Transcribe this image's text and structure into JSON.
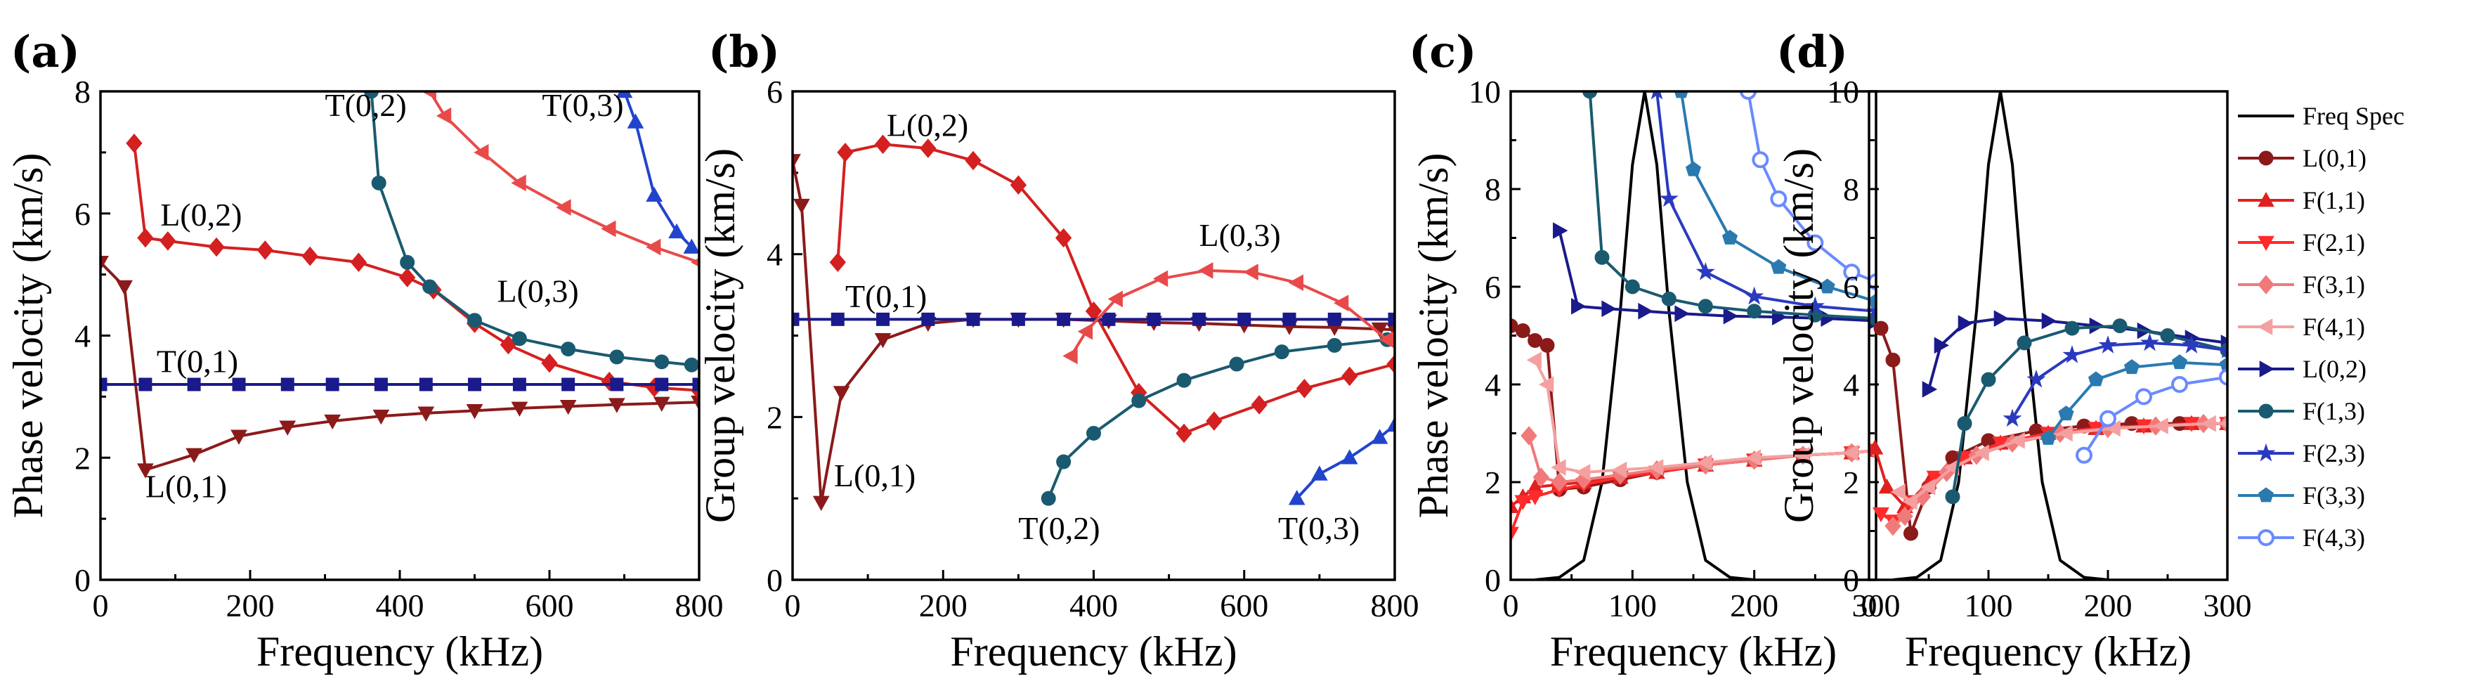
{
  "chart_data": [
    {
      "panel": "(a)",
      "type": "line",
      "xlabel": "Frequency (kHz)",
      "ylabel": "Phase velocity (km/s)",
      "xlim": [
        0,
        800
      ],
      "ylim": [
        0,
        8
      ],
      "xticks": [
        "0",
        "200",
        "400",
        "600",
        "800"
      ],
      "yticks": [
        "0",
        "2",
        "4",
        "6",
        "8"
      ],
      "annotations": [
        "T(0,2)",
        "T(0,3)",
        "L(0,2)",
        "L(0,3)",
        "T(0,1)",
        "L(0,1)"
      ],
      "series": [
        {
          "name": "L(0,1)",
          "color": "#8b1a1a",
          "marker": "tri-down",
          "x": [
            0,
            32,
            60,
            125,
            185,
            250,
            310,
            375,
            435,
            500,
            560,
            625,
            690,
            750,
            800
          ],
          "y": [
            5.2,
            4.8,
            1.8,
            2.05,
            2.35,
            2.5,
            2.6,
            2.68,
            2.73,
            2.77,
            2.81,
            2.84,
            2.87,
            2.89,
            2.91
          ]
        },
        {
          "name": "L(0,2)",
          "color": "#d42020",
          "marker": "diamond",
          "x": [
            45,
            60,
            90,
            155,
            220,
            280,
            345,
            410,
            445,
            500,
            545,
            600,
            680,
            740,
            800
          ],
          "y": [
            7.15,
            5.6,
            5.55,
            5.45,
            5.4,
            5.3,
            5.2,
            4.95,
            4.75,
            4.2,
            3.85,
            3.55,
            3.25,
            3.15,
            3.1
          ]
        },
        {
          "name": "T(0,1)",
          "color": "#1a1a8c",
          "marker": "square",
          "x": [
            0,
            60,
            125,
            185,
            250,
            310,
            375,
            435,
            500,
            560,
            625,
            690,
            750,
            800
          ],
          "y": [
            3.2,
            3.2,
            3.2,
            3.2,
            3.2,
            3.2,
            3.2,
            3.2,
            3.2,
            3.2,
            3.2,
            3.2,
            3.2,
            3.2
          ]
        },
        {
          "name": "T(0,2)",
          "color": "#1a5a70",
          "marker": "circle",
          "x": [
            362,
            372,
            410,
            440,
            500,
            560,
            625,
            690,
            750,
            790
          ],
          "y": [
            8.0,
            6.5,
            5.2,
            4.8,
            4.25,
            3.95,
            3.78,
            3.65,
            3.57,
            3.52
          ]
        },
        {
          "name": "L(0,3)",
          "color": "#e84a4a",
          "marker": "tri-left",
          "x": [
            440,
            460,
            510,
            560,
            620,
            680,
            740,
            800
          ],
          "y": [
            8.0,
            7.6,
            7.0,
            6.5,
            6.1,
            5.75,
            5.45,
            5.2
          ]
        },
        {
          "name": "T(0,3)",
          "color": "#2244cc",
          "marker": "tri-up",
          "x": [
            700,
            715,
            740,
            770,
            790
          ],
          "y": [
            8.0,
            7.5,
            6.3,
            5.7,
            5.45
          ]
        }
      ]
    },
    {
      "panel": "(b)",
      "type": "line",
      "xlabel": "Frequency (kHz)",
      "ylabel": "Group velocity (km/s)",
      "xlim": [
        0,
        800
      ],
      "ylim": [
        0,
        6
      ],
      "xticks": [
        "0",
        "200",
        "400",
        "600",
        "800"
      ],
      "yticks": [
        "0",
        "2",
        "4",
        "6"
      ],
      "annotations": [
        "L(0,2)",
        "L(0,3)",
        "T(0,1)",
        "L(0,1)",
        "T(0,2)",
        "T(0,3)"
      ],
      "series": [
        {
          "name": "L(0,1)",
          "color": "#8b1a1a",
          "marker": "tri-down",
          "x": [
            0,
            12,
            38,
            65,
            120,
            180,
            240,
            300,
            360,
            420,
            480,
            540,
            600,
            660,
            720,
            780,
            800
          ],
          "y": [
            5.15,
            4.6,
            0.95,
            2.3,
            2.95,
            3.15,
            3.2,
            3.2,
            3.2,
            3.18,
            3.16,
            3.15,
            3.13,
            3.11,
            3.1,
            3.08,
            3.07
          ]
        },
        {
          "name": "L(0,2)",
          "color": "#d42020",
          "marker": "diamond",
          "x": [
            60,
            70,
            120,
            180,
            240,
            300,
            360,
            400,
            460,
            520,
            560,
            620,
            680,
            740,
            800
          ],
          "y": [
            3.9,
            5.25,
            5.35,
            5.3,
            5.15,
            4.85,
            4.2,
            3.3,
            2.3,
            1.8,
            1.95,
            2.15,
            2.35,
            2.5,
            2.65
          ]
        },
        {
          "name": "T(0,1)",
          "color": "#1a1a8c",
          "marker": "square",
          "x": [
            0,
            60,
            120,
            180,
            240,
            300,
            360,
            420,
            480,
            540,
            600,
            660,
            720,
            800
          ],
          "y": [
            3.2,
            3.2,
            3.2,
            3.2,
            3.2,
            3.2,
            3.2,
            3.2,
            3.2,
            3.2,
            3.2,
            3.2,
            3.2,
            3.2
          ]
        },
        {
          "name": "T(0,2)",
          "color": "#1a5a70",
          "marker": "circle",
          "x": [
            340,
            360,
            400,
            460,
            520,
            590,
            650,
            720,
            790
          ],
          "y": [
            1.0,
            1.45,
            1.8,
            2.2,
            2.45,
            2.65,
            2.8,
            2.88,
            2.95
          ]
        },
        {
          "name": "L(0,3)",
          "color": "#e84a4a",
          "marker": "tri-left",
          "x": [
            370,
            390,
            430,
            490,
            550,
            610,
            670,
            730,
            790
          ],
          "y": [
            2.75,
            3.05,
            3.45,
            3.7,
            3.8,
            3.78,
            3.65,
            3.4,
            2.95
          ]
        },
        {
          "name": "T(0,3)",
          "color": "#2244cc",
          "marker": "tri-up",
          "x": [
            670,
            700,
            740,
            780,
            800
          ],
          "y": [
            1.0,
            1.3,
            1.5,
            1.75,
            1.9
          ]
        }
      ]
    },
    {
      "panel": "(c)",
      "type": "line",
      "xlabel": "Frequency (kHz)",
      "ylabel": "Phase velocity (km/s)",
      "xlim": [
        0,
        300
      ],
      "ylim": [
        0,
        10
      ],
      "xticks": [
        "0",
        "100",
        "200",
        "300"
      ],
      "yticks": [
        "0",
        "2",
        "4",
        "6",
        "8",
        "10"
      ],
      "series": [
        {
          "name": "Freq Spec",
          "color": "#000000",
          "marker": "none",
          "x": [
            20,
            40,
            60,
            75,
            90,
            100,
            110,
            120,
            130,
            145,
            160,
            180,
            200
          ],
          "y": [
            0,
            0.05,
            0.4,
            2.0,
            5.5,
            8.5,
            10,
            8.5,
            5.5,
            2.0,
            0.4,
            0.05,
            0
          ]
        },
        {
          "name": "L(0,1)",
          "color": "#8b1a1a",
          "marker": "circle",
          "x": [
            0,
            10,
            20,
            30,
            40,
            60,
            90,
            120,
            160,
            200,
            240,
            280,
            300
          ],
          "y": [
            5.2,
            5.1,
            4.9,
            4.8,
            1.85,
            1.9,
            2.05,
            2.2,
            2.35,
            2.45,
            2.55,
            2.6,
            2.65
          ]
        },
        {
          "name": "F(1,1)",
          "color": "#e02020",
          "marker": "tri-up",
          "x": [
            0,
            10,
            20,
            40,
            60,
            90,
            120,
            160,
            200,
            240,
            280,
            300
          ],
          "y": [
            1.5,
            1.7,
            1.9,
            1.95,
            2.0,
            2.1,
            2.2,
            2.35,
            2.45,
            2.55,
            2.6,
            2.65
          ]
        },
        {
          "name": "F(2,1)",
          "color": "#ff2a2a",
          "marker": "tri-down",
          "x": [
            0,
            10,
            20,
            40,
            60,
            90,
            120,
            160,
            200,
            240,
            280,
            300
          ],
          "y": [
            0.95,
            1.6,
            1.7,
            1.85,
            1.95,
            2.1,
            2.2,
            2.35,
            2.45,
            2.55,
            2.6,
            2.65
          ]
        },
        {
          "name": "F(3,1)",
          "color": "#f07a7a",
          "marker": "diamond",
          "x": [
            15,
            25,
            40,
            60,
            90,
            120,
            160,
            200,
            240,
            280,
            300
          ],
          "y": [
            2.95,
            2.1,
            2.0,
            2.05,
            2.15,
            2.25,
            2.35,
            2.45,
            2.55,
            2.6,
            2.65
          ]
        },
        {
          "name": "F(4,1)",
          "color": "#f5a0a0",
          "marker": "tri-left",
          "x": [
            20,
            30,
            40,
            60,
            90,
            120,
            160,
            200,
            240,
            280,
            300
          ],
          "y": [
            4.5,
            4.0,
            2.3,
            2.2,
            2.25,
            2.3,
            2.4,
            2.5,
            2.55,
            2.6,
            2.65
          ]
        },
        {
          "name": "L(0,2)",
          "color": "#1a1a8c",
          "marker": "tri-right",
          "x": [
            40,
            55,
            80,
            110,
            140,
            180,
            220,
            260,
            300
          ],
          "y": [
            7.15,
            5.6,
            5.55,
            5.5,
            5.45,
            5.4,
            5.38,
            5.35,
            5.3
          ]
        },
        {
          "name": "F(1,3)",
          "color": "#1a5a70",
          "marker": "circle",
          "x": [
            65,
            75,
            100,
            130,
            160,
            200,
            250,
            300
          ],
          "y": [
            10,
            6.6,
            6.0,
            5.75,
            5.6,
            5.5,
            5.42,
            5.35
          ]
        },
        {
          "name": "F(2,3)",
          "color": "#2a3ac0",
          "marker": "star",
          "x": [
            120,
            130,
            160,
            200,
            250,
            300
          ],
          "y": [
            10,
            7.8,
            6.3,
            5.8,
            5.6,
            5.5
          ]
        },
        {
          "name": "F(3,3)",
          "color": "#2a7ab0",
          "marker": "pentagon",
          "x": [
            140,
            150,
            180,
            220,
            260,
            300
          ],
          "y": [
            10,
            8.4,
            7.0,
            6.4,
            6.0,
            5.7
          ]
        },
        {
          "name": "F(4,3)",
          "color": "#6a8aff",
          "marker": "circle-open",
          "x": [
            195,
            205,
            220,
            250,
            280,
            300
          ],
          "y": [
            10,
            8.6,
            7.8,
            6.9,
            6.3,
            6.1
          ]
        }
      ]
    },
    {
      "panel": "(d)",
      "type": "line",
      "xlabel": "Frequency (kHz)",
      "ylabel": "Group velocity (km/s)",
      "xlim": [
        0,
        300
      ],
      "ylim": [
        0,
        10
      ],
      "xticks": [
        "0",
        "100",
        "200",
        "300"
      ],
      "yticks": [
        "0",
        "2",
        "4",
        "6",
        "8",
        "10"
      ],
      "series": [
        {
          "name": "Freq Spec",
          "color": "#000000",
          "marker": "none",
          "x": [
            20,
            40,
            60,
            75,
            90,
            100,
            110,
            120,
            130,
            145,
            160,
            180,
            200
          ],
          "y": [
            0,
            0.05,
            0.4,
            2.0,
            5.5,
            8.5,
            10,
            8.5,
            5.5,
            2.0,
            0.4,
            0.05,
            0
          ]
        },
        {
          "name": "L(0,1)",
          "color": "#8b1a1a",
          "marker": "circle",
          "x": [
            10,
            20,
            35,
            50,
            70,
            100,
            140,
            180,
            220,
            260,
            300
          ],
          "y": [
            5.15,
            4.5,
            0.95,
            1.9,
            2.5,
            2.85,
            3.05,
            3.15,
            3.2,
            3.2,
            3.2
          ]
        },
        {
          "name": "F(1,1)",
          "color": "#e02020",
          "marker": "tri-up",
          "x": [
            5,
            15,
            30,
            50,
            80,
            110,
            150,
            190,
            230,
            270,
            300
          ],
          "y": [
            2.7,
            1.9,
            1.5,
            2.0,
            2.5,
            2.8,
            3.0,
            3.1,
            3.15,
            3.2,
            3.2
          ]
        },
        {
          "name": "F(2,1)",
          "color": "#ff2a2a",
          "marker": "tri-down",
          "x": [
            10,
            20,
            35,
            55,
            80,
            110,
            150,
            190,
            230,
            270,
            300
          ],
          "y": [
            1.35,
            1.2,
            1.6,
            2.1,
            2.5,
            2.8,
            3.0,
            3.1,
            3.15,
            3.2,
            3.2
          ]
        },
        {
          "name": "F(3,1)",
          "color": "#f07a7a",
          "marker": "diamond",
          "x": [
            20,
            30,
            45,
            65,
            90,
            120,
            160,
            200,
            240,
            280,
            300
          ],
          "y": [
            1.1,
            1.3,
            1.7,
            2.2,
            2.55,
            2.8,
            3.0,
            3.1,
            3.15,
            3.2,
            3.2
          ]
        },
        {
          "name": "F(4,1)",
          "color": "#f5a0a0",
          "marker": "tri-left",
          "x": [
            25,
            35,
            50,
            70,
            95,
            125,
            165,
            205,
            245,
            285,
            300
          ],
          "y": [
            1.8,
            1.6,
            1.9,
            2.3,
            2.6,
            2.85,
            3.0,
            3.1,
            3.15,
            3.2,
            3.2
          ]
        },
        {
          "name": "L(0,2)",
          "color": "#1a1a8c",
          "marker": "tri-right",
          "x": [
            50,
            60,
            80,
            110,
            150,
            190,
            230,
            270,
            300
          ],
          "y": [
            3.9,
            4.8,
            5.25,
            5.35,
            5.3,
            5.2,
            5.1,
            4.95,
            4.85
          ]
        },
        {
          "name": "F(1,3)",
          "color": "#1a5a70",
          "marker": "circle",
          "x": [
            70,
            80,
            100,
            130,
            170,
            210,
            250,
            300
          ],
          "y": [
            1.7,
            3.2,
            4.1,
            4.85,
            5.15,
            5.2,
            5.0,
            4.7
          ]
        },
        {
          "name": "F(2,3)",
          "color": "#2a3ac0",
          "marker": "star",
          "x": [
            120,
            140,
            170,
            200,
            235,
            270,
            300
          ],
          "y": [
            3.3,
            4.1,
            4.6,
            4.8,
            4.85,
            4.8,
            4.7
          ]
        },
        {
          "name": "F(3,3)",
          "color": "#2a7ab0",
          "marker": "pentagon",
          "x": [
            150,
            165,
            190,
            220,
            260,
            300
          ],
          "y": [
            2.9,
            3.4,
            4.1,
            4.35,
            4.45,
            4.4
          ]
        },
        {
          "name": "F(4,3)",
          "color": "#6a8aff",
          "marker": "circle-open",
          "x": [
            180,
            200,
            230,
            260,
            300
          ],
          "y": [
            2.55,
            3.3,
            3.75,
            4.0,
            4.15
          ]
        }
      ],
      "legend": {
        "position": "right-outside",
        "entries": [
          "Freq Spec",
          "L(0,1)",
          "F(1,1)",
          "F(2,1)",
          "F(3,1)",
          "F(4,1)",
          "L(0,2)",
          "F(1,3)",
          "F(2,3)",
          "F(3,3)",
          "F(4,3)"
        ]
      }
    }
  ]
}
